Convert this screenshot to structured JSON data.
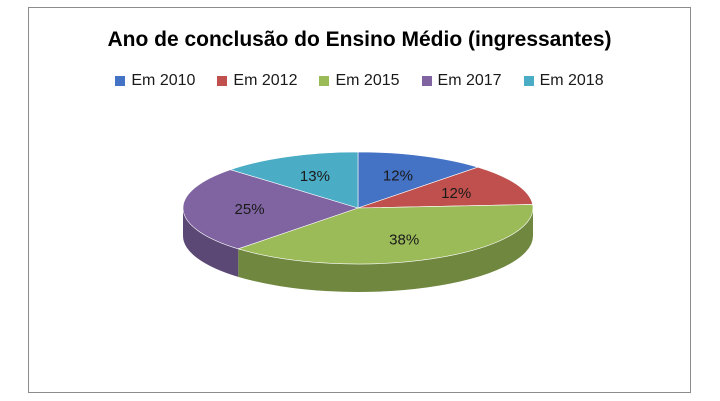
{
  "chart_data": {
    "type": "pie",
    "title": "Ano de conclusão do Ensino Médio (ingressantes)",
    "legend_position": "top",
    "slices": [
      {
        "label": "Em 2010",
        "value": 12,
        "value_label": "12%",
        "color": "#4472C4"
      },
      {
        "label": "Em 2012",
        "value": 12,
        "value_label": "12%",
        "color": "#C0504D"
      },
      {
        "label": "Em 2015",
        "value": 38,
        "value_label": "38%",
        "color": "#9BBB59"
      },
      {
        "label": "Em 2017",
        "value": 25,
        "value_label": "25%",
        "color": "#8064A2"
      },
      {
        "label": "Em 2018",
        "value": 13,
        "value_label": "13%",
        "color": "#4BACC6"
      }
    ]
  }
}
